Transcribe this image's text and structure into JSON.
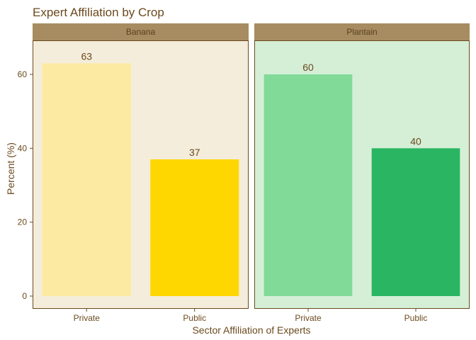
{
  "chart_data": {
    "type": "bar",
    "title": "Expert Affiliation by Crop",
    "xlabel": "Sector Affiliation of Experts",
    "ylabel": "Percent (%)",
    "ylim": [
      0,
      70
    ],
    "y_ticks": [
      0,
      20,
      40,
      60
    ],
    "y_tick_labels": [
      "0",
      "20",
      "40",
      "60"
    ],
    "grid": false,
    "legend": "none",
    "facets": [
      {
        "label": "Banana",
        "background": "#f5eddb",
        "categories": [
          "Private",
          "Public"
        ],
        "values": [
          63,
          37
        ],
        "value_labels": [
          "63",
          "37"
        ],
        "colors": [
          "#fdeaa2",
          "#fed700"
        ]
      },
      {
        "label": "Plantain",
        "background": "#d5efd6",
        "categories": [
          "Private",
          "Public"
        ],
        "values": [
          60,
          40
        ],
        "value_labels": [
          "60",
          "40"
        ],
        "colors": [
          "#81da98",
          "#29b562"
        ]
      }
    ]
  },
  "colors": {
    "strip_fill": "#a68c60",
    "panel_border": "#6b4a1f",
    "text": "#6b4a1f",
    "strip_text": "#5a4020"
  }
}
